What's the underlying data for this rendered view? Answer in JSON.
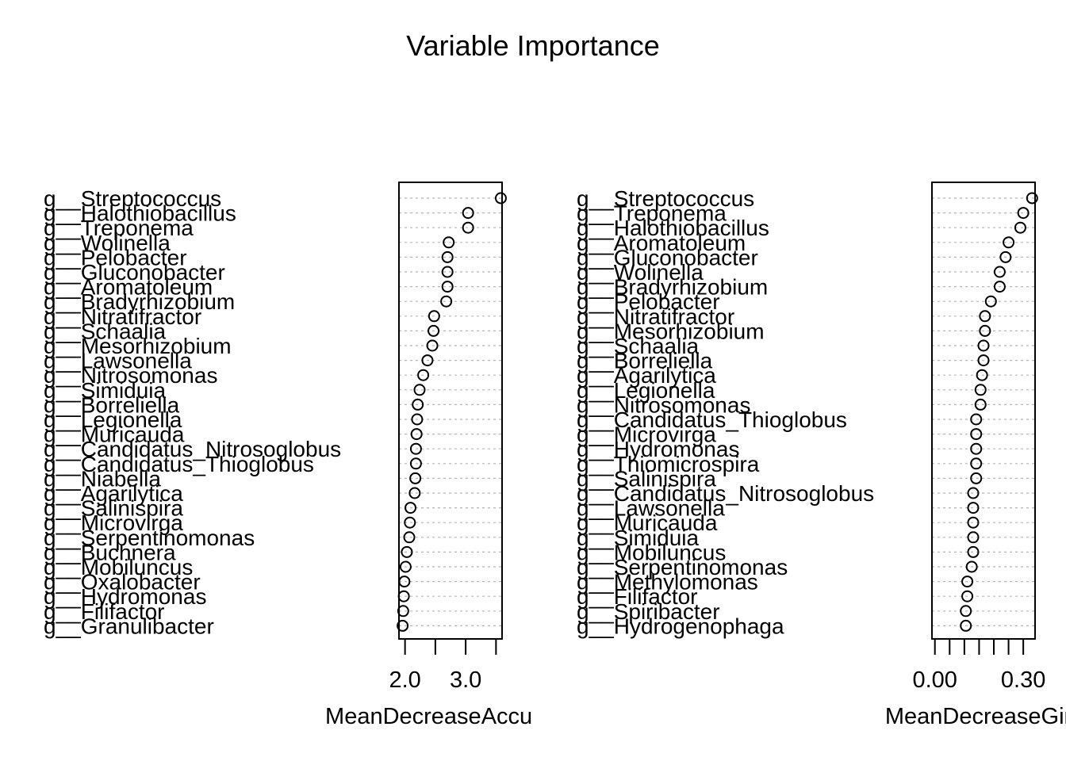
{
  "title": "Variable Importance",
  "chart_data": [
    {
      "type": "scatter",
      "xlabel": "MeanDecreaseAccuracy",
      "xlim": [
        1.9,
        3.6
      ],
      "x_tick_values": [
        2.0,
        2.5,
        3.0,
        3.5
      ],
      "x_tick_labels": [
        "2.0",
        "",
        "3.0",
        ""
      ],
      "grid": "dotted horizontal",
      "categories": [
        "g__Streptococcus",
        "g__Halothiobacillus",
        "g__Treponema",
        "g__Wolinella",
        "g__Pelobacter",
        "g__Gluconobacter",
        "g__Aromatoleum",
        "g__Bradyrhizobium",
        "g__Nitratifractor",
        "g__Schaalia",
        "g__Mesorhizobium",
        "g__Lawsonella",
        "g__Nitrosomonas",
        "g__Simiduia",
        "g__Borreliella",
        "g__Legionella",
        "g__Muricauda",
        "g__Candidatus_Nitrosoglobus",
        "g__Candidatus_Thioglobus",
        "g__Niabella",
        "g__Agarilytica",
        "g__Salinispira",
        "g__Microvirga",
        "g__Serpentinomonas",
        "g__Buchnera",
        "g__Mobiluncus",
        "g__Oxalobacter",
        "g__Hydromonas",
        "g__Filifactor",
        "g__Granulibacter"
      ],
      "values": [
        3.58,
        3.04,
        3.04,
        2.72,
        2.7,
        2.7,
        2.7,
        2.68,
        2.48,
        2.47,
        2.45,
        2.37,
        2.3,
        2.24,
        2.21,
        2.2,
        2.19,
        2.18,
        2.18,
        2.17,
        2.16,
        2.09,
        2.08,
        2.07,
        2.03,
        2.01,
        1.99,
        1.98,
        1.97,
        1.96
      ]
    },
    {
      "type": "scatter",
      "xlabel": "MeanDecreaseGini",
      "xlim": [
        -0.01,
        0.34
      ],
      "x_tick_values": [
        0.0,
        0.05,
        0.1,
        0.15,
        0.2,
        0.25,
        0.3
      ],
      "x_tick_labels": [
        "0.00",
        "",
        "",
        "",
        "",
        "",
        "0.30"
      ],
      "grid": "dotted horizontal",
      "categories": [
        "g__Streptococcus",
        "g__Treponema",
        "g__Halothiobacillus",
        "g__Aromatoleum",
        "g__Gluconobacter",
        "g__Wolinella",
        "g__Bradyrhizobium",
        "g__Pelobacter",
        "g__Nitratifractor",
        "g__Mesorhizobium",
        "g__Schaalia",
        "g__Borreliella",
        "g__Agarilytica",
        "g__Legionella",
        "g__Nitrosomonas",
        "g__Candidatus_Thioglobus",
        "g__Microvirga",
        "g__Hydromonas",
        "g__Thiomicrospira",
        "g__Salinispira",
        "g__Candidatus_Nitrosoglobus",
        "g__Lawsonella",
        "g__Muricauda",
        "g__Simiduia",
        "g__Mobiluncus",
        "g__Serpentinomonas",
        "g__Methylomonas",
        "g__Filifactor",
        "g__Spiribacter",
        "g__Hydrogenophaga"
      ],
      "values": [
        0.33,
        0.3,
        0.29,
        0.25,
        0.24,
        0.22,
        0.22,
        0.19,
        0.17,
        0.17,
        0.165,
        0.165,
        0.16,
        0.155,
        0.155,
        0.14,
        0.14,
        0.14,
        0.14,
        0.14,
        0.13,
        0.13,
        0.13,
        0.13,
        0.13,
        0.125,
        0.11,
        0.11,
        0.105,
        0.105
      ]
    }
  ]
}
